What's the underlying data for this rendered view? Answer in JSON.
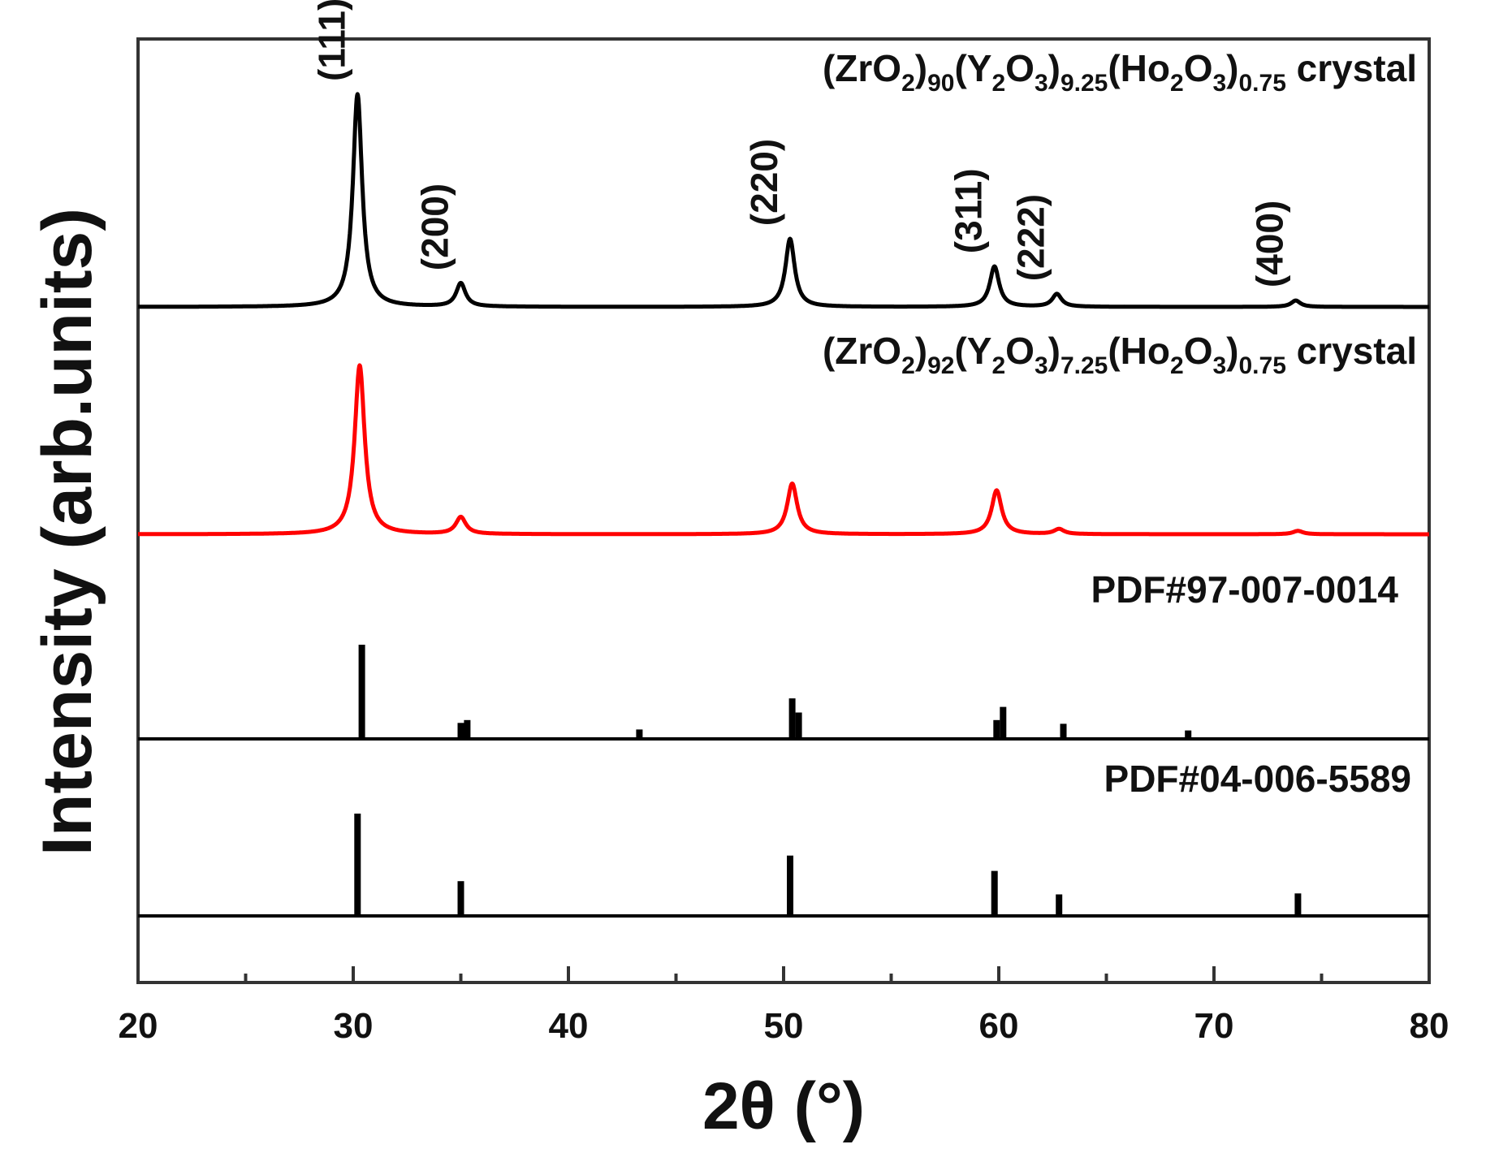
{
  "chart_data": {
    "type": "line",
    "xlabel": "2θ (°)",
    "ylabel": "Intensity (arb.units)",
    "xlim": [
      20,
      80
    ],
    "xticks": [
      20,
      30,
      40,
      50,
      60,
      70,
      80
    ],
    "grid": false,
    "series": [
      {
        "name_parts": [
          {
            "t": "(ZrO",
            "s": "n"
          },
          {
            "t": "2",
            "s": "sub"
          },
          {
            "t": ")",
            "s": "n"
          },
          {
            "t": "90",
            "s": "sub"
          },
          {
            "t": "(Y",
            "s": "n"
          },
          {
            "t": "2",
            "s": "sub"
          },
          {
            "t": "O",
            "s": "n"
          },
          {
            "t": "3",
            "s": "sub"
          },
          {
            "t": ")",
            "s": "n"
          },
          {
            "t": "9.25",
            "s": "sub"
          },
          {
            "t": "(Ho",
            "s": "n"
          },
          {
            "t": "2",
            "s": "sub"
          },
          {
            "t": "O",
            "s": "n"
          },
          {
            "t": "3",
            "s": "sub"
          },
          {
            "t": ")",
            "s": "n"
          },
          {
            "t": "0.75",
            "s": "sub"
          },
          {
            "t": " crystal",
            "s": "n"
          }
        ],
        "name_text": "(ZrO2)90(Y2O3)9.25(Ho2O3)0.75 crystal",
        "color": "#000000",
        "style": "pattern",
        "peaks": [
          {
            "x": 30.2,
            "h": 1.0,
            "hkl": "(111)"
          },
          {
            "x": 35.0,
            "h": 0.11,
            "hkl": "(200)"
          },
          {
            "x": 50.3,
            "h": 0.32,
            "hkl": "(220)"
          },
          {
            "x": 59.8,
            "h": 0.19,
            "hkl": "(311)"
          },
          {
            "x": 62.7,
            "h": 0.06,
            "hkl": "(222)"
          },
          {
            "x": 73.8,
            "h": 0.03,
            "hkl": "(400)"
          }
        ]
      },
      {
        "name_parts": [
          {
            "t": "(ZrO",
            "s": "n"
          },
          {
            "t": "2",
            "s": "sub"
          },
          {
            "t": ")",
            "s": "n"
          },
          {
            "t": "92",
            "s": "sub"
          },
          {
            "t": "(Y",
            "s": "n"
          },
          {
            "t": "2",
            "s": "sub"
          },
          {
            "t": "O",
            "s": "n"
          },
          {
            "t": "3",
            "s": "sub"
          },
          {
            "t": ")",
            "s": "n"
          },
          {
            "t": "7.25",
            "s": "sub"
          },
          {
            "t": "(Ho",
            "s": "n"
          },
          {
            "t": "2",
            "s": "sub"
          },
          {
            "t": "O",
            "s": "n"
          },
          {
            "t": "3",
            "s": "sub"
          },
          {
            "t": ")",
            "s": "n"
          },
          {
            "t": "0.75",
            "s": "sub"
          },
          {
            "t": " crystal",
            "s": "n"
          }
        ],
        "name_text": "(ZrO2)92(Y2O3)7.25(Ho2O3)0.75 crystal",
        "color": "#ff0000",
        "style": "pattern",
        "peaks": [
          {
            "x": 30.3,
            "h": 1.0
          },
          {
            "x": 35.0,
            "h": 0.1
          },
          {
            "x": 50.4,
            "h": 0.3
          },
          {
            "x": 59.9,
            "h": 0.26
          },
          {
            "x": 62.8,
            "h": 0.03
          },
          {
            "x": 73.9,
            "h": 0.02
          }
        ]
      },
      {
        "name": "PDF#97-007-0014",
        "color": "#000000",
        "style": "sticks",
        "peaks": [
          {
            "x": 30.4,
            "h": 1.0
          },
          {
            "x": 35.0,
            "h": 0.17
          },
          {
            "x": 35.3,
            "h": 0.2
          },
          {
            "x": 43.3,
            "h": 0.1
          },
          {
            "x": 50.4,
            "h": 0.43
          },
          {
            "x": 50.7,
            "h": 0.28
          },
          {
            "x": 59.9,
            "h": 0.2
          },
          {
            "x": 60.2,
            "h": 0.34
          },
          {
            "x": 63.0,
            "h": 0.16
          },
          {
            "x": 68.8,
            "h": 0.09
          }
        ]
      },
      {
        "name": "PDF#04-006-5589",
        "color": "#000000",
        "style": "sticks",
        "peaks": [
          {
            "x": 30.2,
            "h": 1.0
          },
          {
            "x": 35.0,
            "h": 0.34
          },
          {
            "x": 50.3,
            "h": 0.59
          },
          {
            "x": 59.8,
            "h": 0.44
          },
          {
            "x": 62.8,
            "h": 0.21
          },
          {
            "x": 73.9,
            "h": 0.22
          }
        ]
      }
    ]
  }
}
